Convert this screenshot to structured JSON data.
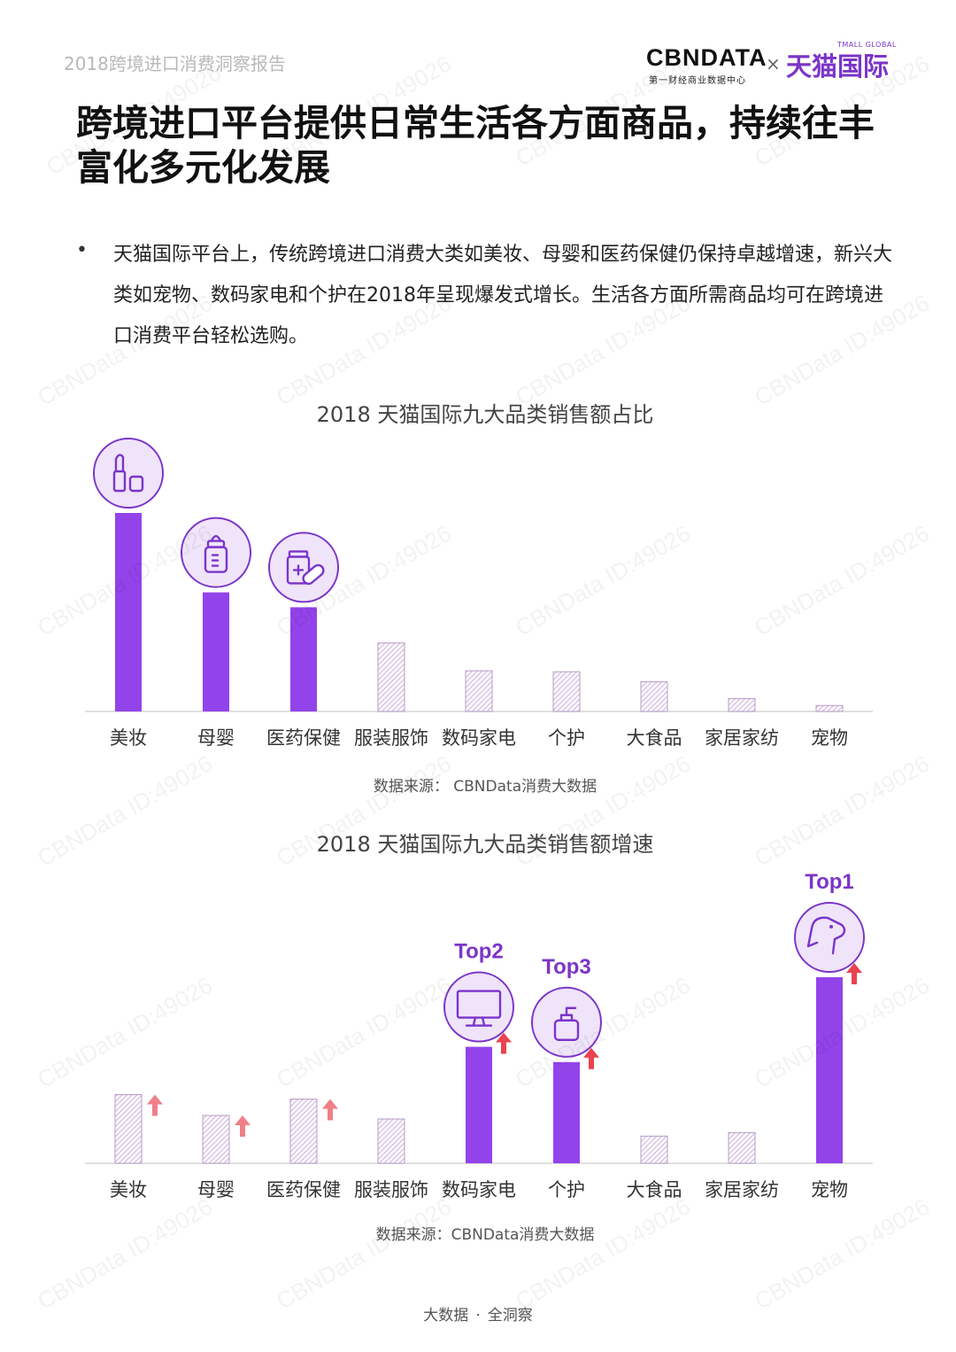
{
  "header": {
    "report_tag": "2018跨境进口消费洞察报告",
    "logo_cbn": "CBNDATA",
    "logo_cbn_sub": "第一财经商业数据中心",
    "logo_x": "×",
    "logo_tmall": "天猫国际",
    "logo_tmall_en": "TMALL GLOBAL"
  },
  "title": "跨境进口平台提供日常生活各方面商品，持续往丰富化多元化发展",
  "bullet": "天猫国际平台上，传统跨境进口消费大类如美妆、母婴和医药保健仍保持卓越增速，新兴大类如宠物、数码家电和个护在2018年呈现爆发式增长。生活各方面所需商品均可在跨境进口消费平台轻松选购。",
  "watermark": "CBNData ID:49026",
  "chart_data": [
    {
      "type": "bar",
      "title": "2018 天猫国际九大品类销售额占比",
      "categories": [
        "美妆",
        "母婴",
        "医药保健",
        "服装服饰",
        "数码家电",
        "个护",
        "大食品",
        "家居家纺",
        "宠物"
      ],
      "values": [
        100,
        60,
        52.5,
        34.5,
        20.5,
        20,
        15,
        6.5,
        3
      ],
      "ylim": [
        0,
        100
      ],
      "highlighted": [
        true,
        true,
        true,
        false,
        false,
        false,
        false,
        false,
        false
      ],
      "icons": [
        "lipstick-icon",
        "baby-bottle-icon",
        "medicine-icon",
        null,
        null,
        null,
        null,
        null,
        null
      ],
      "source": "数据来源： CBNData消费大数据"
    },
    {
      "type": "bar",
      "title": "2018 天猫国际九大品类销售额增速",
      "categories": [
        "美妆",
        "母婴",
        "医药保健",
        "服装服饰",
        "数码家电",
        "个护",
        "大食品",
        "家居家纺",
        "宠物"
      ],
      "values": [
        36.9,
        25.7,
        34.5,
        23.8,
        62.6,
        54.4,
        14.6,
        16.5,
        100
      ],
      "ylim": [
        0,
        100
      ],
      "highlighted": [
        false,
        false,
        false,
        false,
        true,
        true,
        false,
        false,
        true
      ],
      "growth_arrows": [
        true,
        true,
        true,
        false,
        true,
        true,
        false,
        false,
        true
      ],
      "rank_labels": [
        "",
        "",
        "",
        "",
        "Top2",
        "Top3",
        "",
        "",
        "Top1"
      ],
      "icons": [
        null,
        null,
        null,
        null,
        "tv-icon",
        "pump-bottle-icon",
        null,
        null,
        "dog-icon"
      ],
      "source": "数据来源：CBNData消费大数据"
    }
  ],
  "footer": {
    "left": "大数据",
    "sep": "·",
    "right": "全洞察"
  },
  "colors": {
    "bar_solid": "#9243ea",
    "bar_hatch": "#cbb8d6",
    "accent": "#7b35c9",
    "arrow": "#f07f88",
    "icon_bg": "#efe4fa"
  }
}
